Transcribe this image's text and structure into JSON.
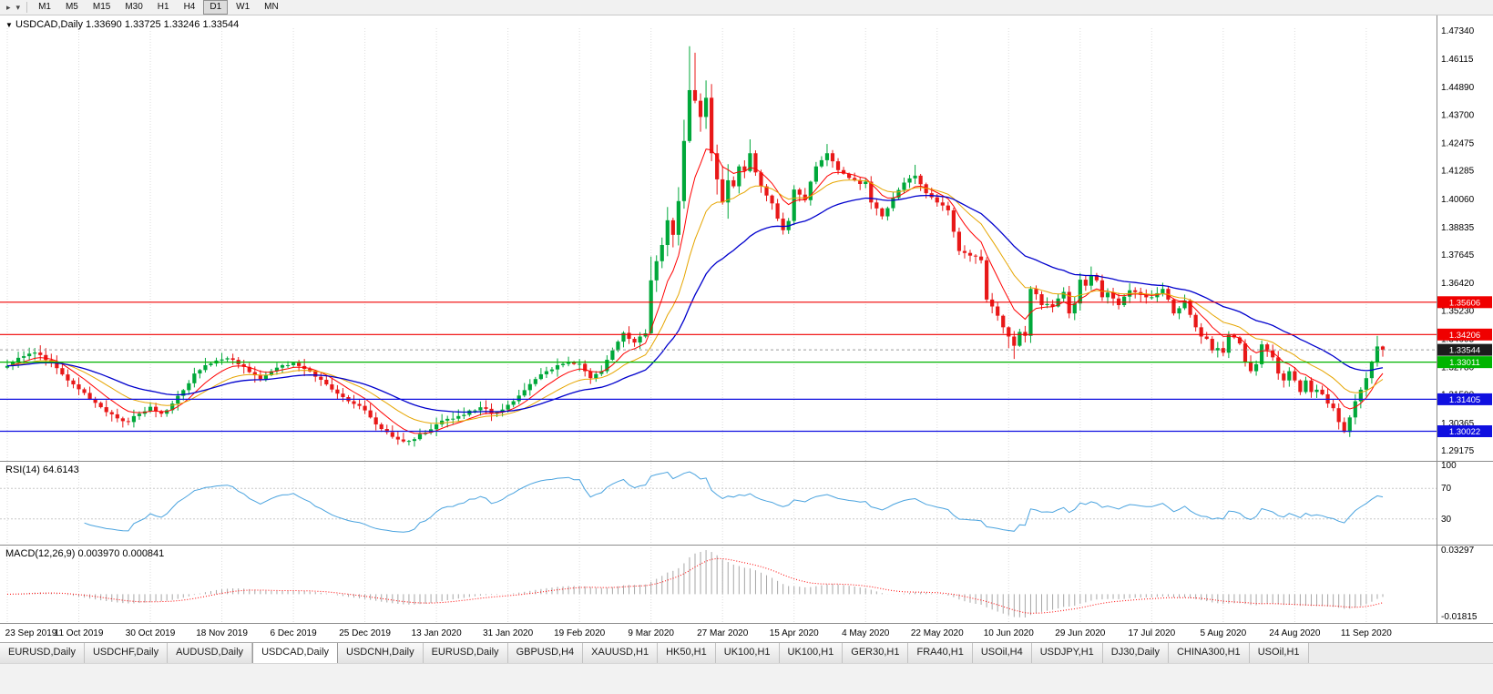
{
  "toolbar": {
    "icons": [
      {
        "name": "chart-pointer-icon",
        "glyph": "▸"
      },
      {
        "name": "toolbar-caret-icon",
        "glyph": "▾"
      }
    ],
    "timeframes": [
      "M1",
      "M5",
      "M15",
      "M30",
      "H1",
      "H4",
      "D1",
      "W1",
      "MN"
    ],
    "active_timeframe": "D1"
  },
  "title_bar": {
    "dropdown_glyph": "▼",
    "symbol": "USDCAD",
    "timeframe": "Daily",
    "open": "1.33690",
    "high": "1.33725",
    "low": "1.33246",
    "close": "1.33544"
  },
  "rsi_panel": {
    "name": "RSI",
    "period": "14",
    "value": "64.6143",
    "axis_labels": [
      "100",
      "70",
      "30"
    ]
  },
  "macd_panel": {
    "name": "MACD",
    "params": "12,26,9",
    "main_value": "0.003970",
    "signal_value": "0.000841",
    "axis_max": "0.03297",
    "axis_min": "-0.01815"
  },
  "tabs": {
    "active_index": 3,
    "items": [
      "EURUSD,Daily",
      "USDCHF,Daily",
      "AUDUSD,Daily",
      "USDCAD,Daily",
      "USDCNH,Daily",
      "EURUSD,Daily",
      "GBPUSD,H4",
      "XAUUSD,H1",
      "HK50,H1",
      "UK100,H1",
      "UK100,H1",
      "GER30,H1",
      "FRA40,H1",
      "USOil,H4",
      "USDJPY,H1",
      "DJ30,Daily",
      "CHINA300,H1",
      "USOil,H1"
    ]
  },
  "chart_data": {
    "type": "candlestick",
    "symbol": "USDCAD",
    "timeframe": "Daily",
    "count": 251,
    "ylim": [
      1.29175,
      1.4734
    ],
    "y_axis_ticks": [
      "1.47340",
      "1.46115",
      "1.44890",
      "1.43700",
      "1.42475",
      "1.41285",
      "1.40060",
      "1.38835",
      "1.37645",
      "1.36420",
      "1.35230",
      "1.34005",
      "1.32780",
      "1.31590",
      "1.30365",
      "1.29175"
    ],
    "x_tick_step": 13,
    "x_tick_labels": [
      "23 Sep 2019",
      "11 Oct 2019",
      "30 Oct 2019",
      "18 Nov 2019",
      "6 Dec 2019",
      "25 Dec 2019",
      "13 Jan 2020",
      "31 Jan 2020",
      "19 Feb 2020",
      "9 Mar 2020",
      "27 Mar 2020",
      "15 Apr 2020",
      "4 May 2020",
      "22 May 2020",
      "10 Jun 2020",
      "29 Jun 2020",
      "17 Jul 2020",
      "5 Aug 2020",
      "24 Aug 2020",
      "11 Sep 2020"
    ],
    "up_color": "#00A83A",
    "down_color": "#E81818",
    "close_anchors": [
      [
        0,
        1.3285
      ],
      [
        2,
        1.332
      ],
      [
        4,
        1.3338
      ],
      [
        6,
        1.3332
      ],
      [
        8,
        1.33
      ],
      [
        10,
        1.3248
      ],
      [
        12,
        1.3205
      ],
      [
        14,
        1.3168
      ],
      [
        16,
        1.3125
      ],
      [
        18,
        1.3085
      ],
      [
        20,
        1.3058
      ],
      [
        22,
        1.3042
      ],
      [
        24,
        1.3078
      ],
      [
        26,
        1.3108
      ],
      [
        28,
        1.3078
      ],
      [
        30,
        1.3122
      ],
      [
        32,
        1.318
      ],
      [
        34,
        1.3252
      ],
      [
        36,
        1.3288
      ],
      [
        38,
        1.3308
      ],
      [
        40,
        1.3318
      ],
      [
        42,
        1.3292
      ],
      [
        44,
        1.3258
      ],
      [
        46,
        1.3228
      ],
      [
        48,
        1.3262
      ],
      [
        50,
        1.3288
      ],
      [
        52,
        1.3298
      ],
      [
        54,
        1.3272
      ],
      [
        56,
        1.3238
      ],
      [
        58,
        1.3205
      ],
      [
        60,
        1.3165
      ],
      [
        62,
        1.3132
      ],
      [
        64,
        1.3112
      ],
      [
        66,
        1.3062
      ],
      [
        68,
        1.3012
      ],
      [
        70,
        1.2978
      ],
      [
        72,
        1.2958
      ],
      [
        74,
        1.2968
      ],
      [
        76,
        1.2996
      ],
      [
        78,
        1.3032
      ],
      [
        80,
        1.3056
      ],
      [
        82,
        1.3068
      ],
      [
        84,
        1.3092
      ],
      [
        86,
        1.3106
      ],
      [
        88,
        1.3078
      ],
      [
        90,
        1.3096
      ],
      [
        92,
        1.3132
      ],
      [
        94,
        1.318
      ],
      [
        96,
        1.3228
      ],
      [
        98,
        1.3262
      ],
      [
        100,
        1.3288
      ],
      [
        102,
        1.33
      ],
      [
        104,
        1.3294
      ],
      [
        106,
        1.3232
      ],
      [
        108,
        1.3262
      ],
      [
        110,
        1.3352
      ],
      [
        112,
        1.3428
      ],
      [
        113,
        1.3402
      ],
      [
        114,
        1.3386
      ],
      [
        115,
        1.3412
      ],
      [
        116,
        1.3426
      ],
      [
        117,
        1.3655
      ],
      [
        118,
        1.3738
      ],
      [
        119,
        1.3808
      ],
      [
        120,
        1.3915
      ],
      [
        121,
        1.3852
      ],
      [
        122,
        1.3998
      ],
      [
        123,
        1.4258
      ],
      [
        124,
        1.4478
      ],
      [
        125,
        1.4432
      ],
      [
        126,
        1.4362
      ],
      [
        127,
        1.4445
      ],
      [
        128,
        1.4205
      ],
      [
        129,
        1.4092
      ],
      [
        130,
        1.3992
      ],
      [
        131,
        1.4088
      ],
      [
        132,
        1.4062
      ],
      [
        133,
        1.4148
      ],
      [
        134,
        1.4128
      ],
      [
        135,
        1.4205
      ],
      [
        136,
        1.4122
      ],
      [
        137,
        1.4062
      ],
      [
        138,
        1.4022
      ],
      [
        139,
        1.3988
      ],
      [
        140,
        1.3922
      ],
      [
        141,
        1.3872
      ],
      [
        142,
        1.3912
      ],
      [
        143,
        1.4048
      ],
      [
        145,
        1.4002
      ],
      [
        147,
        1.4148
      ],
      [
        149,
        1.4205
      ],
      [
        151,
        1.4132
      ],
      [
        153,
        1.4098
      ],
      [
        155,
        1.4072
      ],
      [
        156,
        1.4082
      ],
      [
        157,
        1.3992
      ],
      [
        159,
        1.3932
      ],
      [
        161,
        1.4012
      ],
      [
        163,
        1.4078
      ],
      [
        165,
        1.4108
      ],
      [
        167,
        1.4032
      ],
      [
        169,
        1.3992
      ],
      [
        171,
        1.3958
      ],
      [
        173,
        1.3782
      ],
      [
        175,
        1.3762
      ],
      [
        177,
        1.3742
      ],
      [
        178,
        1.3572
      ],
      [
        179,
        1.3542
      ],
      [
        180,
        1.3502
      ],
      [
        181,
        1.3452
      ],
      [
        182,
        1.3412
      ],
      [
        183,
        1.3372
      ],
      [
        184,
        1.3432
      ],
      [
        185,
        1.3415
      ],
      [
        186,
        1.3618
      ],
      [
        187,
        1.3595
      ],
      [
        188,
        1.3548
      ],
      [
        190,
        1.3542
      ],
      [
        192,
        1.3605
      ],
      [
        193,
        1.3512
      ],
      [
        194,
        1.3555
      ],
      [
        195,
        1.3658
      ],
      [
        196,
        1.3632
      ],
      [
        197,
        1.3678
      ],
      [
        198,
        1.3655
      ],
      [
        199,
        1.3582
      ],
      [
        200,
        1.3602
      ],
      [
        202,
        1.3548
      ],
      [
        204,
        1.3612
      ],
      [
        206,
        1.3592
      ],
      [
        208,
        1.3582
      ],
      [
        210,
        1.3618
      ],
      [
        212,
        1.3512
      ],
      [
        214,
        1.3568
      ],
      [
        216,
        1.3452
      ],
      [
        217,
        1.3412
      ],
      [
        218,
        1.3402
      ],
      [
        219,
        1.3352
      ],
      [
        220,
        1.3362
      ],
      [
        221,
        1.3342
      ],
      [
        222,
        1.3418
      ],
      [
        223,
        1.3408
      ],
      [
        224,
        1.3382
      ],
      [
        225,
        1.3302
      ],
      [
        226,
        1.3262
      ],
      [
        227,
        1.3292
      ],
      [
        228,
        1.3378
      ],
      [
        229,
        1.3352
      ],
      [
        230,
        1.3322
      ],
      [
        231,
        1.3252
      ],
      [
        232,
        1.3222
      ],
      [
        233,
        1.3262
      ],
      [
        234,
        1.3222
      ],
      [
        235,
        1.3172
      ],
      [
        236,
        1.3222
      ],
      [
        237,
        1.3172
      ],
      [
        238,
        1.3182
      ],
      [
        239,
        1.3162
      ],
      [
        240,
        1.3122
      ],
      [
        241,
        1.3102
      ],
      [
        242,
        1.3042
      ],
      [
        243,
        1.2999
      ],
      [
        244,
        1.3062
      ],
      [
        245,
        1.3132
      ],
      [
        246,
        1.3182
      ],
      [
        247,
        1.3232
      ],
      [
        248,
        1.3302
      ],
      [
        249,
        1.3369
      ],
      [
        250,
        1.33544
      ]
    ],
    "high_overrides": {
      "117": 1.3758,
      "123": 1.435,
      "124": 1.4668,
      "125": 1.464,
      "127": 1.452,
      "135": 1.4265,
      "149": 1.4245,
      "165": 1.4155,
      "186": 1.363,
      "197": 1.3715,
      "222": 1.3435,
      "228": 1.3395,
      "249": 1.3415,
      "250": 1.33725
    },
    "low_overrides": {
      "72": 1.2952,
      "117": 1.3418,
      "124": 1.425,
      "182": 1.3362,
      "183": 1.3315,
      "242": 1.301,
      "243": 1.2994,
      "250": 1.33246
    },
    "moving_averages": [
      {
        "type": "ema",
        "period": 8,
        "color": "#FF0000"
      },
      {
        "type": "ema",
        "period": 17,
        "color": "#E6A500"
      },
      {
        "type": "ema",
        "period": 34,
        "color": "#0000CD"
      }
    ],
    "horizontal_lines": [
      {
        "price": 1.35606,
        "label": "1.35606",
        "color": "#F00000"
      },
      {
        "price": 1.34206,
        "label": "1.34206",
        "color": "#F00000"
      },
      {
        "price": 1.33011,
        "label": "1.33011",
        "color": "#00B400"
      },
      {
        "price": 1.31405,
        "label": "1.31405",
        "color": "#1010E0"
      },
      {
        "price": 1.30022,
        "label": "1.30022",
        "color": "#1010E0"
      }
    ],
    "current_price": {
      "value": 1.33544,
      "label": "1.33544",
      "tag_color": "#1C1C1C",
      "line_color": "#9a9a9a"
    },
    "indicators": {
      "rsi": {
        "period": 14,
        "color": "#4AA3DF",
        "levels": [
          70,
          30
        ]
      },
      "macd": {
        "fast": 12,
        "slow": 26,
        "signal": 9,
        "bar_color": "#A6A6A6",
        "signal_color": "#FF0000"
      }
    }
  }
}
